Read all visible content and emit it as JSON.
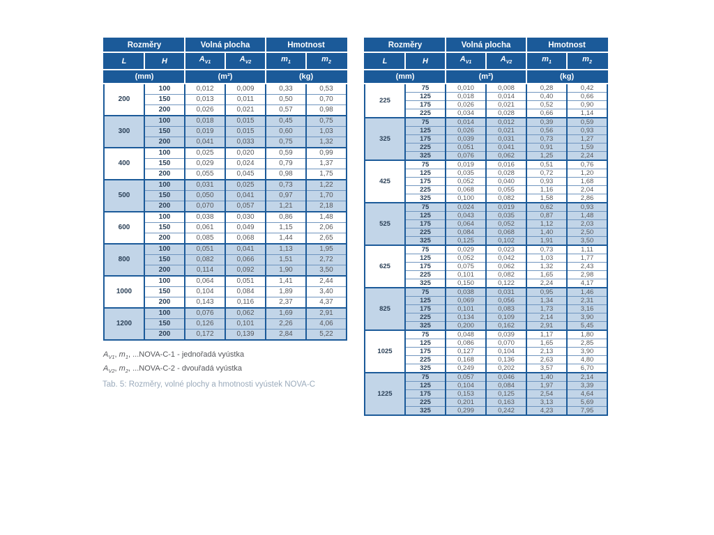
{
  "colors": {
    "header_bg": "#1B5A99",
    "alt_row_bg": "#C2D5E8",
    "border": "#1B5A99",
    "value_text": "#55565A",
    "dimension_text": "#2B4057",
    "caption_text": "#9AAABB"
  },
  "header": {
    "groups": [
      "Rozměry",
      "Volná plocha",
      "Hmotnost"
    ],
    "columns": [
      {
        "text": "L",
        "sub": ""
      },
      {
        "text": "H",
        "sub": ""
      },
      {
        "text": "A",
        "sub": "V1"
      },
      {
        "text": "A",
        "sub": "V2"
      },
      {
        "text": "m",
        "sub": "1"
      },
      {
        "text": "m",
        "sub": "2"
      }
    ],
    "units": [
      "(mm)",
      "(m²)",
      "(kg)"
    ]
  },
  "left_table": {
    "groups": [
      {
        "L": "200",
        "rows": [
          {
            "H": "100",
            "values": [
              "0,012",
              "0,009",
              "0,33",
              "0,53"
            ]
          },
          {
            "H": "150",
            "values": [
              "0,013",
              "0,011",
              "0,50",
              "0,70"
            ]
          },
          {
            "H": "200",
            "values": [
              "0,026",
              "0,021",
              "0,57",
              "0,98"
            ]
          }
        ]
      },
      {
        "L": "300",
        "rows": [
          {
            "H": "100",
            "values": [
              "0,018",
              "0,015",
              "0,45",
              "0,75"
            ]
          },
          {
            "H": "150",
            "values": [
              "0,019",
              "0,015",
              "0,60",
              "1,03"
            ]
          },
          {
            "H": "200",
            "values": [
              "0,041",
              "0,033",
              "0,75",
              "1,32"
            ]
          }
        ]
      },
      {
        "L": "400",
        "rows": [
          {
            "H": "100",
            "values": [
              "0,025",
              "0,020",
              "0,59",
              "0,99"
            ]
          },
          {
            "H": "150",
            "values": [
              "0,029",
              "0,024",
              "0,79",
              "1,37"
            ]
          },
          {
            "H": "200",
            "values": [
              "0,055",
              "0,045",
              "0,98",
              "1,75"
            ]
          }
        ]
      },
      {
        "L": "500",
        "rows": [
          {
            "H": "100",
            "values": [
              "0,031",
              "0,025",
              "0,73",
              "1,22"
            ]
          },
          {
            "H": "150",
            "values": [
              "0,050",
              "0,041",
              "0,97",
              "1,70"
            ]
          },
          {
            "H": "200",
            "values": [
              "0,070",
              "0,057",
              "1,21",
              "2,18"
            ]
          }
        ]
      },
      {
        "L": "600",
        "rows": [
          {
            "H": "100",
            "values": [
              "0,038",
              "0,030",
              "0,86",
              "1,48"
            ]
          },
          {
            "H": "150",
            "values": [
              "0,061",
              "0,049",
              "1,15",
              "2,06"
            ]
          },
          {
            "H": "200",
            "values": [
              "0,085",
              "0,068",
              "1,44",
              "2,65"
            ]
          }
        ]
      },
      {
        "L": "800",
        "rows": [
          {
            "H": "100",
            "values": [
              "0,051",
              "0,041",
              "1,13",
              "1,95"
            ]
          },
          {
            "H": "150",
            "values": [
              "0,082",
              "0,066",
              "1,51",
              "2,72"
            ]
          },
          {
            "H": "200",
            "values": [
              "0,114",
              "0,092",
              "1,90",
              "3,50"
            ]
          }
        ]
      },
      {
        "L": "1000",
        "rows": [
          {
            "H": "100",
            "values": [
              "0,064",
              "0,051",
              "1,41",
              "2,44"
            ]
          },
          {
            "H": "150",
            "values": [
              "0,104",
              "0,084",
              "1,89",
              "3,40"
            ]
          },
          {
            "H": "200",
            "values": [
              "0,143",
              "0,116",
              "2,37",
              "4,37"
            ]
          }
        ]
      },
      {
        "L": "1200",
        "rows": [
          {
            "H": "100",
            "values": [
              "0,076",
              "0,062",
              "1,69",
              "2,91"
            ]
          },
          {
            "H": "150",
            "values": [
              "0,126",
              "0,101",
              "2,26",
              "4,06"
            ]
          },
          {
            "H": "200",
            "values": [
              "0,172",
              "0,139",
              "2,84",
              "5,22"
            ]
          }
        ]
      }
    ]
  },
  "right_table": {
    "groups": [
      {
        "L": "225",
        "rows": [
          {
            "H": "75",
            "values": [
              "0,010",
              "0,008",
              "0,28",
              "0,42"
            ]
          },
          {
            "H": "125",
            "values": [
              "0,018",
              "0,014",
              "0,40",
              "0,66"
            ]
          },
          {
            "H": "175",
            "values": [
              "0,026",
              "0,021",
              "0,52",
              "0,90"
            ]
          },
          {
            "H": "225",
            "values": [
              "0,034",
              "0,028",
              "0,66",
              "1,14"
            ]
          }
        ]
      },
      {
        "L": "325",
        "rows": [
          {
            "H": "75",
            "values": [
              "0,014",
              "0,012",
              "0,39",
              "0,59"
            ]
          },
          {
            "H": "125",
            "values": [
              "0,026",
              "0,021",
              "0,56",
              "0,93"
            ]
          },
          {
            "H": "175",
            "values": [
              "0,039",
              "0,031",
              "0,73",
              "1,27"
            ]
          },
          {
            "H": "225",
            "values": [
              "0,051",
              "0,041",
              "0,91",
              "1,59"
            ]
          },
          {
            "H": "325",
            "values": [
              "0,076",
              "0,062",
              "1,25",
              "2,24"
            ]
          }
        ]
      },
      {
        "L": "425",
        "rows": [
          {
            "H": "75",
            "values": [
              "0,019",
              "0,016",
              "0,51",
              "0,76"
            ]
          },
          {
            "H": "125",
            "values": [
              "0,035",
              "0,028",
              "0,72",
              "1,20"
            ]
          },
          {
            "H": "175",
            "values": [
              "0,052",
              "0,040",
              "0,93",
              "1,68"
            ]
          },
          {
            "H": "225",
            "values": [
              "0,068",
              "0,055",
              "1,16",
              "2,04"
            ]
          },
          {
            "H": "325",
            "values": [
              "0,100",
              "0,082",
              "1,58",
              "2,86"
            ]
          }
        ]
      },
      {
        "L": "525",
        "rows": [
          {
            "H": "75",
            "values": [
              "0,024",
              "0,019",
              "0,62",
              "0,93"
            ]
          },
          {
            "H": "125",
            "values": [
              "0,043",
              "0,035",
              "0,87",
              "1,48"
            ]
          },
          {
            "H": "175",
            "values": [
              "0,064",
              "0,052",
              "1,12",
              "2,03"
            ]
          },
          {
            "H": "225",
            "values": [
              "0,084",
              "0,068",
              "1,40",
              "2,50"
            ]
          },
          {
            "H": "325",
            "values": [
              "0,125",
              "0,102",
              "1,91",
              "3,50"
            ]
          }
        ]
      },
      {
        "L": "625",
        "rows": [
          {
            "H": "75",
            "values": [
              "0,029",
              "0,023",
              "0,73",
              "1,11"
            ]
          },
          {
            "H": "125",
            "values": [
              "0,052",
              "0,042",
              "1,03",
              "1,77"
            ]
          },
          {
            "H": "175",
            "values": [
              "0,075",
              "0,062",
              "1,32",
              "2,43"
            ]
          },
          {
            "H": "225",
            "values": [
              "0,101",
              "0,082",
              "1,65",
              "2,98"
            ]
          },
          {
            "H": "325",
            "values": [
              "0,150",
              "0,122",
              "2,24",
              "4,17"
            ]
          }
        ]
      },
      {
        "L": "825",
        "rows": [
          {
            "H": "75",
            "values": [
              "0,038",
              "0,031",
              "0,95",
              "1,46"
            ]
          },
          {
            "H": "125",
            "values": [
              "0,069",
              "0,056",
              "1,34",
              "2,31"
            ]
          },
          {
            "H": "175",
            "values": [
              "0,101",
              "0,083",
              "1,73",
              "3,16"
            ]
          },
          {
            "H": "225",
            "values": [
              "0,134",
              "0,109",
              "2,14",
              "3,90"
            ]
          },
          {
            "H": "325",
            "values": [
              "0,200",
              "0,162",
              "2,91",
              "5,45"
            ]
          }
        ]
      },
      {
        "L": "1025",
        "rows": [
          {
            "H": "75",
            "values": [
              "0,048",
              "0,039",
              "1,17",
              "1,80"
            ]
          },
          {
            "H": "125",
            "values": [
              "0,086",
              "0,070",
              "1,65",
              "2,85"
            ]
          },
          {
            "H": "175",
            "values": [
              "0,127",
              "0,104",
              "2,13",
              "3,90"
            ]
          },
          {
            "H": "225",
            "values": [
              "0,168",
              "0,136",
              "2,63",
              "4,80"
            ]
          },
          {
            "H": "325",
            "values": [
              "0,249",
              "0,202",
              "3,57",
              "6,70"
            ]
          }
        ]
      },
      {
        "L": "1225",
        "rows": [
          {
            "H": "75",
            "values": [
              "0,057",
              "0,046",
              "1,40",
              "2,14"
            ]
          },
          {
            "H": "125",
            "values": [
              "0,104",
              "0,084",
              "1,97",
              "3,39"
            ]
          },
          {
            "H": "175",
            "values": [
              "0,153",
              "0,125",
              "2,54",
              "4,64"
            ]
          },
          {
            "H": "225",
            "values": [
              "0,201",
              "0,163",
              "3,13",
              "5,69"
            ]
          },
          {
            "H": "325",
            "values": [
              "0,299",
              "0,242",
              "4,23",
              "7,95"
            ]
          }
        ]
      }
    ]
  },
  "footnotes": [
    {
      "symbols": [
        {
          "text": "A",
          "sub": "V1"
        },
        {
          "text": "m",
          "sub": "1"
        }
      ],
      "description": "...NOVA-C-1 - jednořadá vyústka"
    },
    {
      "symbols": [
        {
          "text": "A",
          "sub": "V2"
        },
        {
          "text": "m",
          "sub": "2"
        }
      ],
      "description": "...NOVA-C-2 - dvouřadá vyústka"
    }
  ],
  "caption": "Tab. 5: Rozměry, volné plochy a hmotnosti vyústek NOVA-C"
}
